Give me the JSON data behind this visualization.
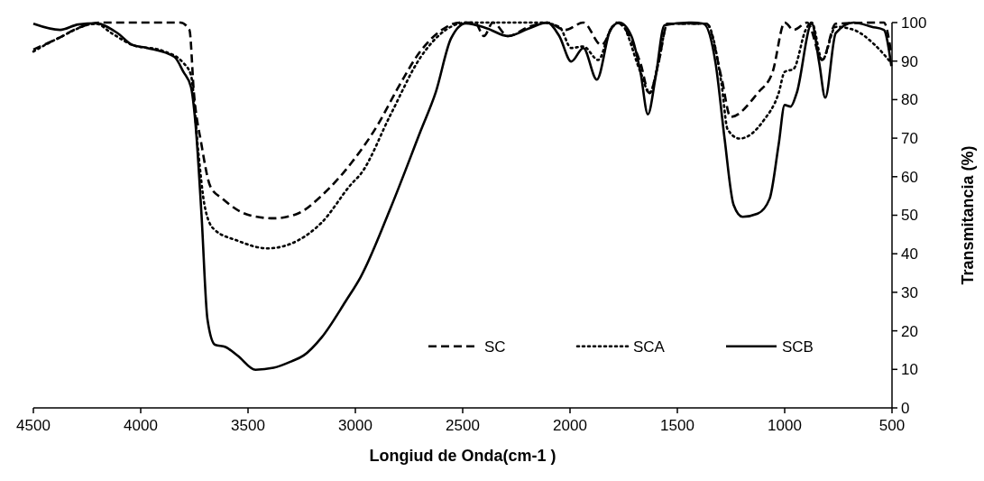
{
  "chart_data": {
    "type": "line",
    "xlabel": "Longiud de Onda(cm-1 )",
    "ylabel": "Transmitancia (%)",
    "xlim": [
      4500,
      500
    ],
    "xticks": [
      4500,
      4000,
      3500,
      3000,
      2500,
      2000,
      1500,
      1000,
      500
    ],
    "ylim": [
      0,
      100
    ],
    "yticks": [
      0,
      10,
      20,
      30,
      40,
      50,
      60,
      70,
      80,
      90,
      100
    ],
    "grid": false,
    "legend": "bottom right",
    "marker": "none",
    "series": [
      {
        "name": "SC",
        "color": "#000000",
        "line_style": "dashed",
        "x": [
          4500,
          4389,
          4277,
          4179,
          3969,
          3815,
          3773,
          3752,
          3717,
          3675,
          3619,
          3493,
          3381,
          3269,
          3157,
          3017,
          2891,
          2807,
          2695,
          2597,
          2513,
          2443,
          2401,
          2359,
          2289,
          2191,
          2106,
          2022,
          1938,
          1854,
          1784,
          1672,
          1630,
          1588,
          1546,
          1364,
          1294,
          1252,
          1126,
          1056,
          1000,
          958,
          895,
          825,
          762,
          538,
          503
        ],
        "values": [
          93,
          95.8,
          98.9,
          100,
          100,
          100,
          98.1,
          81.7,
          68.4,
          57.4,
          54.3,
          50,
          49.2,
          50.4,
          55.1,
          63.7,
          73.9,
          82.5,
          92.7,
          98.1,
          100,
          100,
          96.5,
          100,
          96.5,
          98.9,
          100,
          98.1,
          100,
          94.2,
          100,
          89.5,
          81.7,
          89.5,
          99.7,
          99.7,
          85.6,
          75.5,
          81.7,
          87.2,
          100,
          98.1,
          100,
          90.3,
          99.7,
          100,
          91.8
        ]
      },
      {
        "name": "SCA",
        "color": "#000000",
        "line_style": "dotted",
        "x": [
          4500,
          4389,
          4207,
          4137,
          4039,
          3899,
          3801,
          3766,
          3731,
          3703,
          3661,
          3549,
          3409,
          3269,
          3157,
          3017,
          2975,
          2835,
          2695,
          2555,
          2485,
          2387,
          2134,
          2050,
          1994,
          1938,
          1868,
          1812,
          1770,
          1672,
          1630,
          1588,
          1546,
          1364,
          1294,
          1266,
          1210,
          1098,
          1028,
          1000,
          958,
          902,
          874,
          825,
          762,
          678,
          580,
          503
        ],
        "values": [
          92.5,
          95.8,
          99.7,
          97.3,
          94.2,
          92.7,
          89.5,
          86.4,
          66,
          52.7,
          46.5,
          43.4,
          41.4,
          43.4,
          48.1,
          58.2,
          60.7,
          76.2,
          91.1,
          98.9,
          100,
          100,
          100,
          98.9,
          93.4,
          93.8,
          90.3,
          98.1,
          100,
          87.2,
          81.7,
          89.5,
          99.7,
          99.7,
          84,
          72.3,
          69.9,
          74.6,
          81.7,
          87.2,
          88,
          98.1,
          100,
          90.3,
          98.9,
          98.1,
          94.2,
          89.5
        ]
      },
      {
        "name": "SCB",
        "color": "#000000",
        "line_style": "solid",
        "x": [
          4500,
          4375,
          4291,
          4207,
          4109,
          4039,
          3969,
          3843,
          3801,
          3766,
          3745,
          3717,
          3689,
          3654,
          3605,
          3549,
          3465,
          3381,
          3297,
          3241,
          3157,
          3045,
          2975,
          2835,
          2695,
          2625,
          2555,
          2485,
          2387,
          2289,
          2191,
          2106,
          2050,
          1994,
          1938,
          1875,
          1812,
          1770,
          1714,
          1672,
          1637,
          1602,
          1560,
          1434,
          1378,
          1322,
          1280,
          1238,
          1196,
          1126,
          1070,
          1028,
          1000,
          972,
          944,
          874,
          839,
          811,
          762,
          678,
          594,
          538,
          503
        ],
        "values": [
          99.7,
          98.1,
          99.5,
          99.8,
          97.3,
          94.2,
          93.4,
          91.1,
          87.2,
          83.3,
          73.9,
          50.4,
          23,
          16.4,
          15.8,
          13.6,
          9.9,
          10.4,
          12.1,
          13.6,
          18.3,
          27.7,
          34,
          52,
          72,
          82,
          95.8,
          99.8,
          98.5,
          96.5,
          98.5,
          100,
          96.5,
          89.9,
          93.4,
          85.2,
          98.1,
          100,
          96.5,
          87.2,
          76.2,
          85.6,
          99.3,
          100,
          99.7,
          89.5,
          69.9,
          52.7,
          49.6,
          50.4,
          54.3,
          68.4,
          78.6,
          78.2,
          81.7,
          99.7,
          89.5,
          80.5,
          97.3,
          100,
          98.9,
          98.1,
          88.7
        ]
      }
    ]
  }
}
